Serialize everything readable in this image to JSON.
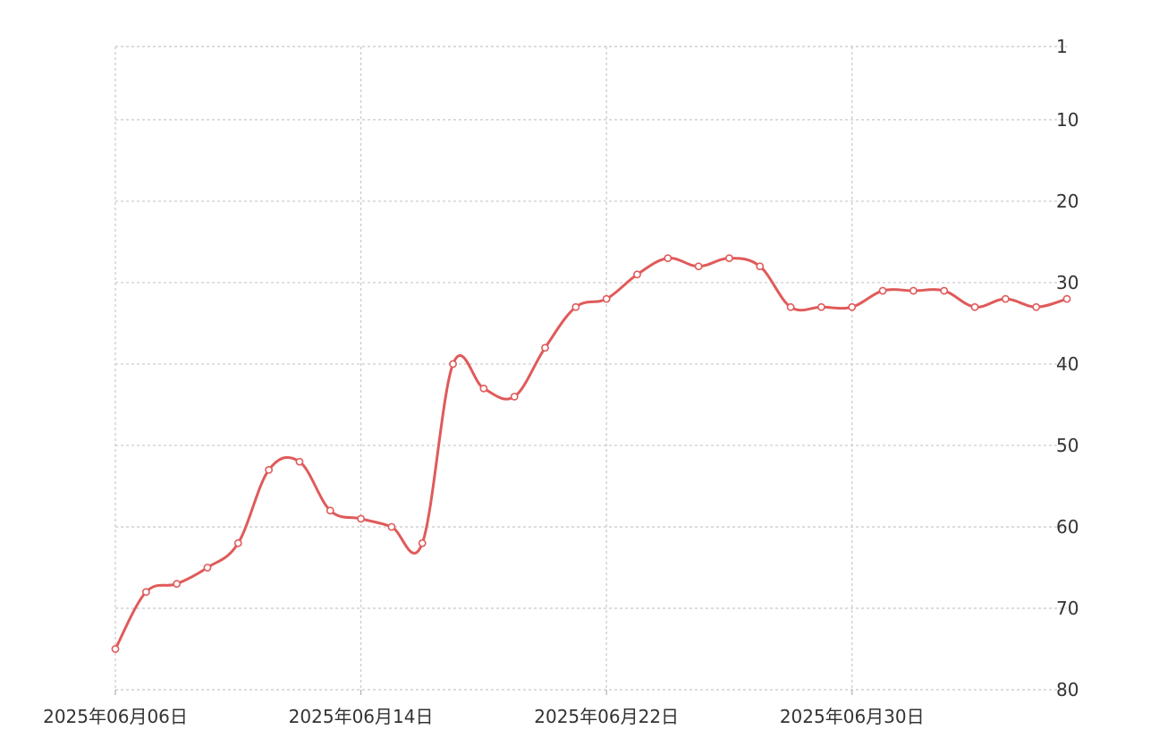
{
  "chart_data": {
    "type": "line",
    "title": "",
    "xlabel": "",
    "ylabel": "",
    "x_tick_labels": [
      "2025年06月06日",
      "2025年06月14日",
      "2025年06月22日",
      "2025年06月30日"
    ],
    "y_ticks": [
      1,
      10,
      20,
      30,
      40,
      50,
      60,
      70,
      80
    ],
    "y_inverted": true,
    "y_axis_side": "right",
    "ylim": [
      1,
      80
    ],
    "xlim": [
      "2025-06-06",
      "2025-07-07"
    ],
    "grid": true,
    "grid_style": "dashed",
    "line_color": "#e05a5a",
    "smooth": true,
    "series": [
      {
        "x": [
          "2025-06-06",
          "2025-06-07",
          "2025-06-08",
          "2025-06-09",
          "2025-06-10",
          "2025-06-11",
          "2025-06-12",
          "2025-06-13",
          "2025-06-14",
          "2025-06-15",
          "2025-06-16",
          "2025-06-17",
          "2025-06-18",
          "2025-06-19",
          "2025-06-20",
          "2025-06-21",
          "2025-06-22",
          "2025-06-23",
          "2025-06-24",
          "2025-06-25",
          "2025-06-26",
          "2025-06-27",
          "2025-06-28",
          "2025-06-29",
          "2025-06-30",
          "2025-07-01",
          "2025-07-02",
          "2025-07-03",
          "2025-07-04",
          "2025-07-05",
          "2025-07-06",
          "2025-07-07"
        ],
        "y": [
          75,
          68,
          67,
          65,
          62,
          53,
          52,
          58,
          59,
          60,
          62,
          40,
          43,
          44,
          38,
          33,
          32,
          29,
          27,
          28,
          27,
          28,
          33,
          33,
          33,
          31,
          31,
          31,
          33,
          32,
          33,
          32
        ]
      }
    ]
  }
}
